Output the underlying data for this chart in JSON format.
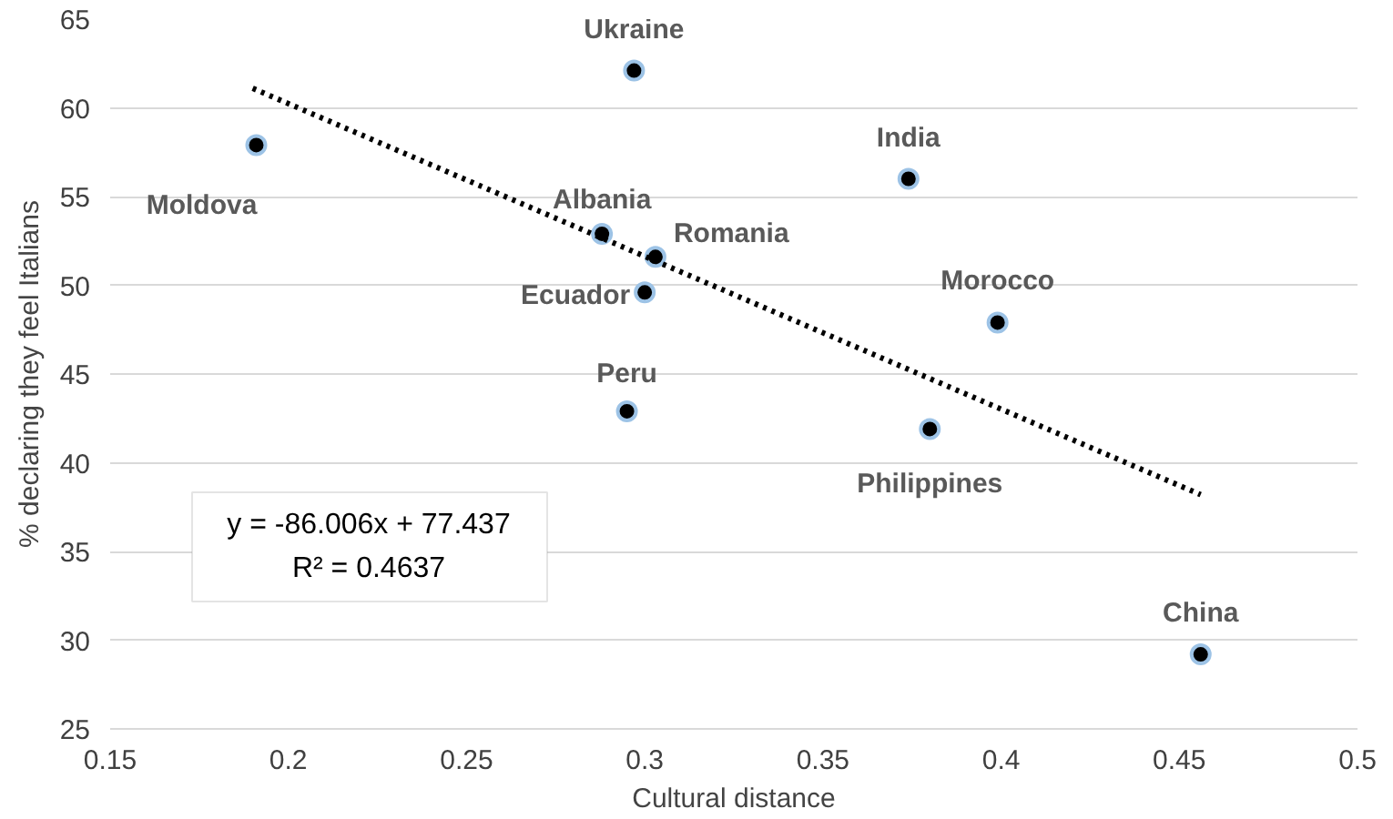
{
  "chart_data": {
    "type": "scatter",
    "xlabel": "Cultural distance",
    "ylabel": "% declaring they feel Italians",
    "xlim": [
      0.15,
      0.5
    ],
    "xticks": [
      0.15,
      0.2,
      0.25,
      0.3,
      0.35,
      0.4,
      0.45,
      0.5
    ],
    "ylim": [
      25,
      65
    ],
    "yticks": [
      25,
      30,
      35,
      40,
      45,
      50,
      55,
      60,
      65
    ],
    "grid": "y",
    "series": [
      {
        "marker": "circle",
        "color": "#000000",
        "x": [
          0.191,
          0.297,
          0.374,
          0.288,
          0.303,
          0.3,
          0.399,
          0.295,
          0.38,
          0.456
        ],
        "values": [
          57.9,
          62.1,
          56.0,
          52.9,
          51.6,
          49.6,
          47.9,
          42.9,
          41.9,
          29.2
        ]
      },
      {
        "type": "line",
        "color": "#000000",
        "line_style": "dotted",
        "x": [
          0.19,
          0.456
        ],
        "values": [
          61.1,
          38.2
        ]
      }
    ],
    "annotations": [
      {
        "text": "Moldova",
        "x": 0.191,
        "y": 57.9
      },
      {
        "text": "Ukraine",
        "x": 0.297,
        "y": 62.1
      },
      {
        "text": "India",
        "x": 0.374,
        "y": 56.0
      },
      {
        "text": "Albania",
        "x": 0.288,
        "y": 52.9
      },
      {
        "text": "Romania",
        "x": 0.303,
        "y": 51.6
      },
      {
        "text": "Ecuador",
        "x": 0.3,
        "y": 49.6
      },
      {
        "text": "Morocco",
        "x": 0.399,
        "y": 47.9
      },
      {
        "text": "Peru",
        "x": 0.295,
        "y": 42.9
      },
      {
        "text": "Philippines",
        "x": 0.38,
        "y": 41.9
      },
      {
        "text": "China",
        "x": 0.456,
        "y": 29.2
      },
      "y = -86.006x + 77.437",
      "R² = 0.4637"
    ]
  }
}
